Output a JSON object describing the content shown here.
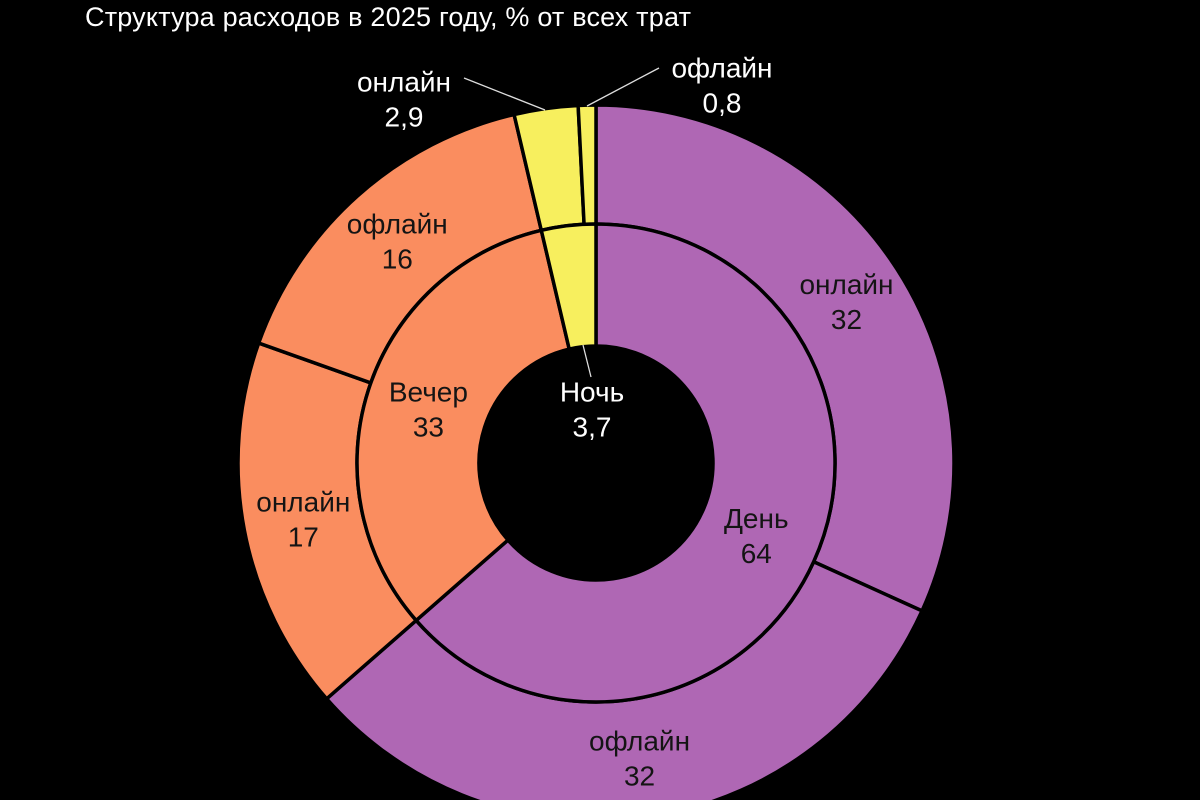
{
  "colors": {
    "background": "#000000",
    "title_text": "#ffffff",
    "inside_label_text": "#141414",
    "outside_label_text": "#ffffff",
    "segment_stroke": "#000000",
    "leader_line": "#dddddd",
    "day": "#af67b4",
    "evening": "#fa8d5f",
    "night": "#f7ef5e"
  },
  "chart_data": {
    "type": "sunburst",
    "title": "Структура расходов в 2025 году, % от всех трат",
    "units": "% от всех трат",
    "start_angle": "12 o'clock",
    "direction": "clockwise",
    "legend": "none",
    "rings": {
      "inner": [
        {
          "label": "День",
          "value": 64,
          "display": "64",
          "color": "#af67b4"
        },
        {
          "label": "Вечер",
          "value": 33,
          "display": "33",
          "color": "#fa8d5f"
        },
        {
          "label": "Ночь",
          "value": 3.7,
          "display": "3,7",
          "color": "#f7ef5e"
        }
      ],
      "outer": [
        {
          "parent": "День",
          "label": "онлайн",
          "value": 32,
          "display": "32",
          "color": "#af67b4"
        },
        {
          "parent": "День",
          "label": "офлайн",
          "value": 32,
          "display": "32",
          "color": "#af67b4"
        },
        {
          "parent": "Вечер",
          "label": "онлайн",
          "value": 17,
          "display": "17",
          "color": "#fa8d5f"
        },
        {
          "parent": "Вечер",
          "label": "офлайн",
          "value": 16,
          "display": "16",
          "color": "#fa8d5f"
        },
        {
          "parent": "Ночь",
          "label": "онлайн",
          "value": 2.9,
          "display": "2,9",
          "color": "#f7ef5e"
        },
        {
          "parent": "Ночь",
          "label": "офлайн",
          "value": 0.8,
          "display": "0,8",
          "color": "#f7ef5e"
        }
      ]
    }
  }
}
